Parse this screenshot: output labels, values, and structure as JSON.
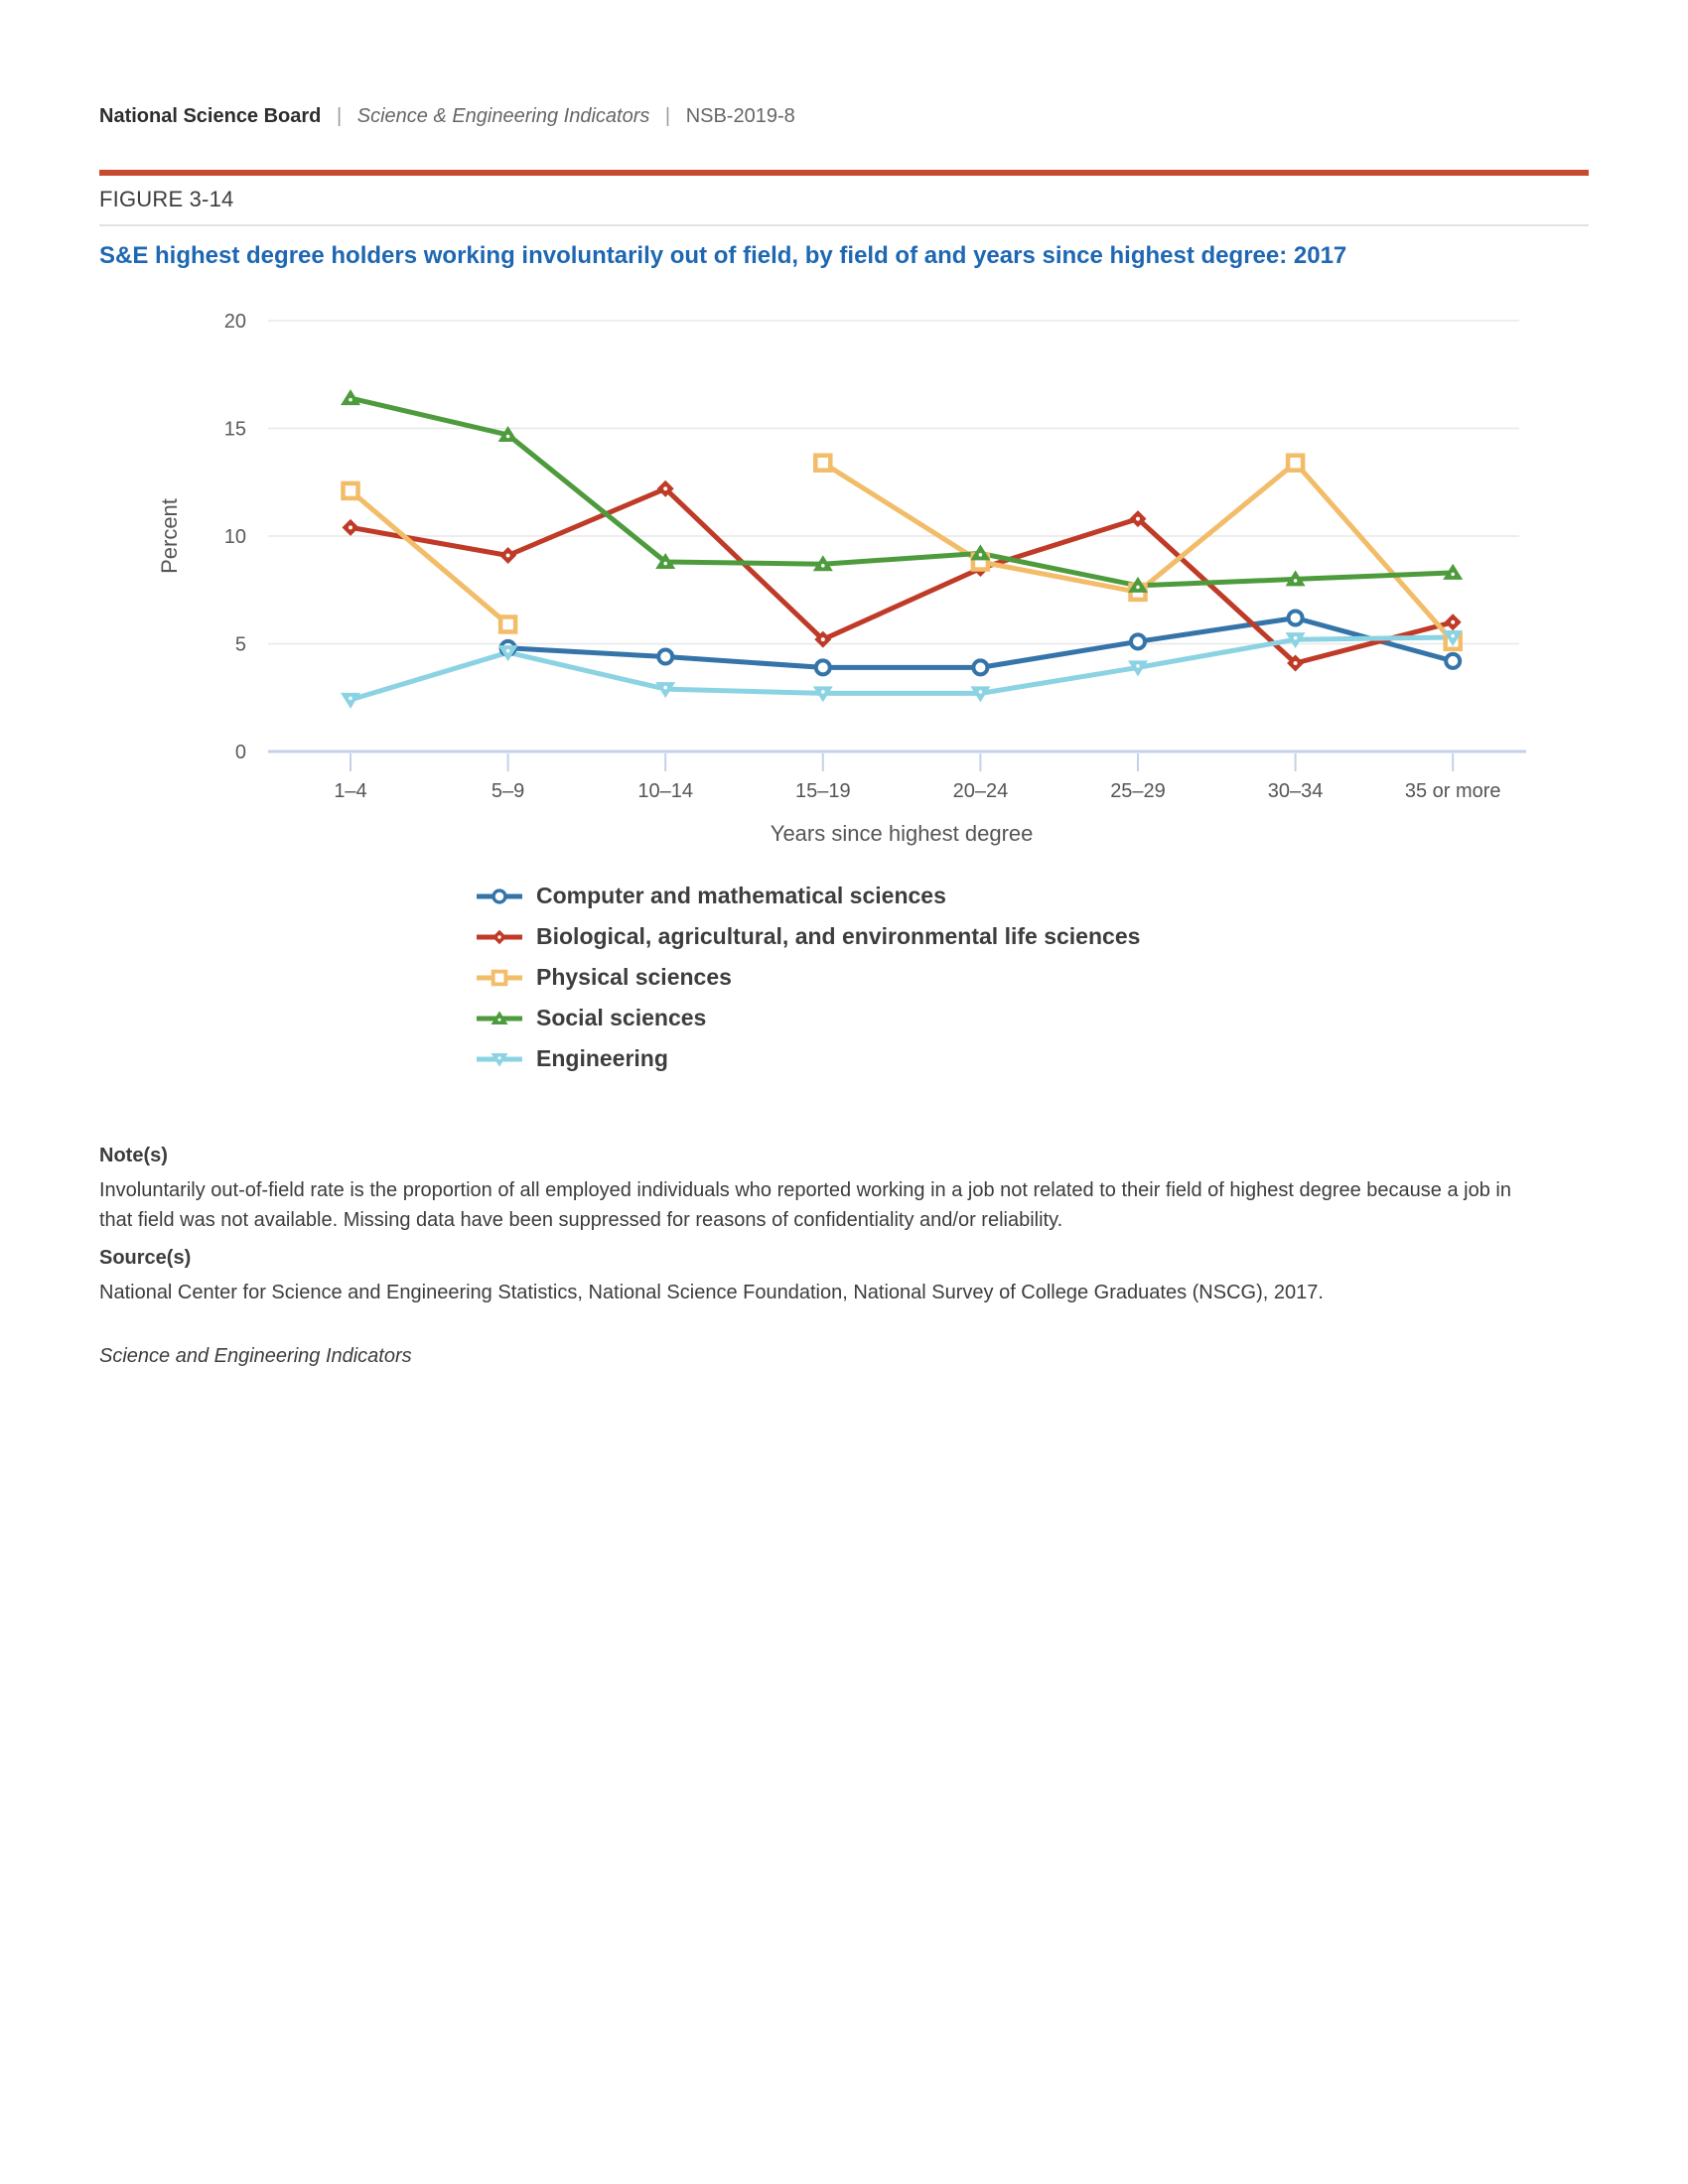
{
  "header": {
    "brand": "National Science Board",
    "separator": "|",
    "publication": "Science & Engineering Indicators",
    "report_id": "NSB-2019-8"
  },
  "figure": {
    "label": "FIGURE 3-14",
    "title": "S&E highest degree holders working involuntarily out of field, by field of and years since highest degree: 2017"
  },
  "chart_data": {
    "type": "line",
    "title": "S&E highest degree holders working involuntarily out of field, by field of and years since highest degree: 2017",
    "xlabel": "Years since highest degree",
    "ylabel": "Percent",
    "categories": [
      "1–4",
      "5–9",
      "10–14",
      "15–19",
      "20–24",
      "25–29",
      "30–34",
      "35 or more"
    ],
    "ylim": [
      0,
      20
    ],
    "yticks": [
      0,
      5,
      10,
      15,
      20
    ],
    "grid": "horizontal",
    "legend_position": "bottom",
    "missing_data_note": "Missing data suppressed",
    "series": [
      {
        "name": "Computer and mathematical sciences",
        "marker": "circle",
        "color": "#3474a9",
        "values": [
          null,
          4.8,
          4.4,
          3.9,
          3.9,
          5.1,
          6.2,
          4.2
        ]
      },
      {
        "name": "Biological, agricultural, and environmental life sciences",
        "marker": "diamond",
        "color": "#bf3a27",
        "values": [
          10.4,
          9.1,
          12.2,
          5.2,
          8.5,
          10.8,
          4.1,
          6.0
        ]
      },
      {
        "name": "Physical sciences",
        "marker": "square",
        "color": "#f2bc68",
        "values": [
          12.1,
          5.9,
          null,
          13.4,
          8.8,
          7.4,
          13.4,
          5.1
        ]
      },
      {
        "name": "Social sciences",
        "marker": "triangle-up",
        "color": "#4d9b3d",
        "values": [
          16.4,
          14.7,
          8.8,
          8.7,
          9.2,
          7.7,
          8.0,
          8.3
        ]
      },
      {
        "name": "Engineering",
        "marker": "triangle-down",
        "color": "#8bd3e3",
        "values": [
          2.4,
          4.6,
          2.9,
          2.7,
          2.7,
          3.9,
          5.2,
          5.3
        ]
      }
    ]
  },
  "notes": {
    "heading": "Note(s)",
    "body": "Involuntarily out-of-field rate is the proportion of all employed individuals who reported working in a job not related to their field of highest degree because a job in that field was not available. Missing data have been suppressed for reasons of confidentiality and/or reliability."
  },
  "sources": {
    "heading": "Source(s)",
    "body": "National Center for Science and Engineering Statistics, National Science Foundation, National Survey of College Graduates (NSCG), 2017.",
    "footer": "Science and Engineering Indicators"
  },
  "colors": {
    "accent_rule": "#c74b31",
    "title_blue": "#1e67b2",
    "axis_line": "#c3d2e9",
    "gridline": "#e8e8e8",
    "tick_text": "#5a5a5a",
    "axis_title_text": "#555555"
  }
}
